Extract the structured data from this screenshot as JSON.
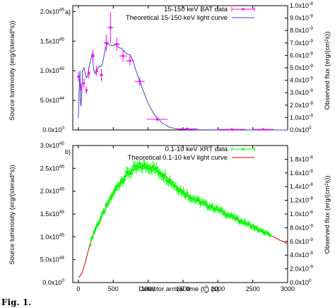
{
  "figure": {
    "x_axis_label": "Detector arrival time (t",
    "x_axis_label_sup": "d",
    "x_axis_label_sub": "a",
    "x_axis_label_end": ") (s)",
    "x_ticks": [
      "0",
      "500",
      "1000",
      "1500",
      "2000",
      "2500",
      "3000"
    ],
    "caption_fragment": "Fig. 1."
  },
  "chart_data": [
    {
      "type": "line",
      "panel_label": "a)",
      "ylabel_left": "Source luminosity (erg/(sterad*s))",
      "ylabel_right": "Observed flux (erg/(cm²s))",
      "xlim": [
        -80,
        3000
      ],
      "ylim": [
        0,
        2.1e+45
      ],
      "left_ticks": [
        {
          "v": 0,
          "m": "0.0x10",
          "e": "0"
        },
        {
          "v": 5e+44,
          "m": "5.0x10",
          "e": "44"
        },
        {
          "v": 1e+45,
          "m": "1.0x10",
          "e": "45"
        },
        {
          "v": 1.5e+45,
          "m": "1.5x10",
          "e": "45"
        },
        {
          "v": 2e+45,
          "m": "2.0x10",
          "e": "45"
        }
      ],
      "right_ticks": [
        {
          "f": 0,
          "m": "0.0x10",
          "e": "0"
        },
        {
          "f": 0.1,
          "m": "1.0x10",
          "e": "-9"
        },
        {
          "f": 0.2,
          "m": "2.0x10",
          "e": "-9"
        },
        {
          "f": 0.3,
          "m": "3.0x10",
          "e": "-9"
        },
        {
          "f": 0.4,
          "m": "4.0x10",
          "e": "-9"
        },
        {
          "f": 0.5,
          "m": "5.0x10",
          "e": "-9"
        },
        {
          "f": 0.6,
          "m": "6.0x10",
          "e": "-9"
        },
        {
          "f": 0.7,
          "m": "7.0x10",
          "e": "-9"
        },
        {
          "f": 0.8,
          "m": "8.0x10",
          "e": "-9"
        },
        {
          "f": 0.9,
          "m": "9.0x10",
          "e": "-9"
        },
        {
          "f": 1.0,
          "m": "1.0x10",
          "e": "-8"
        }
      ],
      "legend": [
        "15-150 keV BAT data",
        "Theoretical 15-150 keV light curve"
      ],
      "data_color": "#ff00ff",
      "curve_color": "#4040c0",
      "data": [
        {
          "x": 0,
          "y": 9e+44,
          "xe": 12,
          "ye": 8e+43
        },
        {
          "x": 40,
          "y": 7.3e+44,
          "xe": 12,
          "ye": 6e+43
        },
        {
          "x": 80,
          "y": 7.9e+44,
          "xe": 12,
          "ye": 8e+43
        },
        {
          "x": 115,
          "y": 6.7e+44,
          "xe": 12,
          "ye": 6e+43
        },
        {
          "x": 150,
          "y": 9.6e+44,
          "xe": 18,
          "ye": 9e+43
        },
        {
          "x": 210,
          "y": 1.25e+45,
          "xe": 25,
          "ye": 1.1e+44
        },
        {
          "x": 260,
          "y": 1e+45,
          "xe": 25,
          "ye": 8e+43
        },
        {
          "x": 330,
          "y": 9.3e+44,
          "xe": 30,
          "ye": 1e+44
        },
        {
          "x": 400,
          "y": 1.47e+45,
          "xe": 40,
          "ye": 1.4e+44
        },
        {
          "x": 460,
          "y": 1.73e+45,
          "xe": 45,
          "ye": 2.6e+44
        },
        {
          "x": 550,
          "y": 1.45e+45,
          "xe": 50,
          "ye": 1.1e+44
        },
        {
          "x": 640,
          "y": 1.25e+45,
          "xe": 55,
          "ye": 1e+44
        },
        {
          "x": 740,
          "y": 1.17e+45,
          "xe": 60,
          "ye": 8e+43
        },
        {
          "x": 880,
          "y": 8.2e+44,
          "xe": 70,
          "ye": 7e+43
        },
        {
          "x": 1130,
          "y": 1.8e+44,
          "xe": 150,
          "ye": 3e+43
        },
        {
          "x": 1560,
          "y": 2e+43,
          "xe": 150,
          "ye": 2e+43
        },
        {
          "x": 2200,
          "y": 1e+43,
          "xe": 200,
          "ye": 1e+43
        },
        {
          "x": 2650,
          "y": 1e+43,
          "xe": 150,
          "ye": 1e+43
        }
      ],
      "curve": [
        [
          0,
          2e+44
        ],
        [
          10,
          6.5e+44
        ],
        [
          22,
          1e+45
        ],
        [
          30,
          5e+44
        ],
        [
          38,
          4e+44
        ],
        [
          48,
          6e+44
        ],
        [
          60,
          1e+45
        ],
        [
          80,
          1.05e+45
        ],
        [
          100,
          9.5e+44
        ],
        [
          115,
          8.8e+44
        ],
        [
          130,
          9e+44
        ],
        [
          150,
          1.05e+45
        ],
        [
          170,
          1.15e+45
        ],
        [
          190,
          1.25e+45
        ],
        [
          200,
          1.3e+45
        ],
        [
          210,
          1.15e+45
        ],
        [
          222,
          1e+45
        ],
        [
          240,
          9.5e+44
        ],
        [
          260,
          1e+45
        ],
        [
          280,
          1.05e+45
        ],
        [
          300,
          1.08e+45
        ],
        [
          320,
          1.07e+45
        ],
        [
          340,
          1.1e+45
        ],
        [
          360,
          1.2e+45
        ],
        [
          390,
          1.4e+45
        ],
        [
          420,
          1.46e+45
        ],
        [
          460,
          1.43e+45
        ],
        [
          500,
          1.42e+45
        ],
        [
          540,
          1.45e+45
        ],
        [
          580,
          1.39e+45
        ],
        [
          620,
          1.38e+45
        ],
        [
          660,
          1.33e+45
        ],
        [
          700,
          1.28e+45
        ],
        [
          740,
          1.27e+45
        ],
        [
          780,
          1.18e+45
        ],
        [
          820,
          1.02e+45
        ],
        [
          880,
          8.2e+44
        ],
        [
          950,
          6e+44
        ],
        [
          1000,
          4.5e+44
        ],
        [
          1050,
          3.4e+44
        ],
        [
          1100,
          2.4e+44
        ],
        [
          1200,
          1.2e+44
        ],
        [
          1300,
          5e+43
        ],
        [
          1400,
          2e+43
        ],
        [
          1500,
          8e+42
        ],
        [
          1700,
          3e+42
        ],
        [
          2000,
          1e+42
        ],
        [
          3000,
          0
        ]
      ]
    },
    {
      "type": "line",
      "panel_label": "b)",
      "ylabel_left": "Source luminosity (erg/(sterad*s))",
      "ylabel_right": "Observed flux (erg/(cm²s))",
      "xlim": [
        -80,
        3000
      ],
      "ylim": [
        0,
        3e+45
      ],
      "left_ticks": [
        {
          "v": 0,
          "m": "0.0x10",
          "e": "0"
        },
        {
          "v": 5e+44,
          "m": "5.0x10",
          "e": "44"
        },
        {
          "v": 1e+45,
          "m": "1.0x10",
          "e": "45"
        },
        {
          "v": 1.5e+45,
          "m": "1.5x10",
          "e": "45"
        },
        {
          "v": 2e+45,
          "m": "2.0x10",
          "e": "45"
        },
        {
          "v": 2.5e+45,
          "m": "2.5x10",
          "e": "45"
        },
        {
          "v": 3e+45,
          "m": "3.0x10",
          "e": "45"
        }
      ],
      "right_ticks": [
        {
          "f": 0,
          "m": "0.0x10",
          "e": "0"
        },
        {
          "f": 0.1,
          "m": "2.0x10",
          "e": "-9"
        },
        {
          "f": 0.2,
          "m": "4.0x10",
          "e": "-9"
        },
        {
          "f": 0.3,
          "m": "6.0x10",
          "e": "-9"
        },
        {
          "f": 0.4,
          "m": "8.0x10",
          "e": "-9"
        },
        {
          "f": 0.5,
          "m": "1.0x10",
          "e": "-8"
        },
        {
          "f": 0.6,
          "m": "1.2x10",
          "e": "-8"
        },
        {
          "f": 0.7,
          "m": "1.4x10",
          "e": "-8"
        },
        {
          "f": 0.8,
          "m": "1.6x10",
          "e": "-8"
        },
        {
          "f": 0.9,
          "m": "1.8x10",
          "e": "-8"
        }
      ],
      "legend": [
        "0.1-10 keV XRT data",
        "Theoretical 0.1-10 keV light curve"
      ],
      "data_color": "#00ff00",
      "curve_color": "#d00000",
      "data_range": [
        170,
        2750
      ],
      "data_count": 150,
      "curve": [
        [
          0,
          1e+44
        ],
        [
          50,
          2e+44
        ],
        [
          100,
          4.5e+44
        ],
        [
          150,
          7.5e+44
        ],
        [
          200,
          1e+45
        ],
        [
          250,
          1.2e+45
        ],
        [
          300,
          1.35e+45
        ],
        [
          400,
          1.65e+45
        ],
        [
          500,
          1.95e+45
        ],
        [
          600,
          2.2e+45
        ],
        [
          700,
          2.38e+45
        ],
        [
          800,
          2.48e+45
        ],
        [
          900,
          2.54e+45
        ],
        [
          1000,
          2.55e+45
        ],
        [
          1100,
          2.48e+45
        ],
        [
          1200,
          2.38e+45
        ],
        [
          1300,
          2.25e+45
        ],
        [
          1400,
          2.1e+45
        ],
        [
          1500,
          1.98e+45
        ],
        [
          1600,
          1.88e+45
        ],
        [
          1700,
          1.8e+45
        ],
        [
          1800,
          1.72e+45
        ],
        [
          1900,
          1.66e+45
        ],
        [
          2000,
          1.6e+45
        ],
        [
          2100,
          1.52e+45
        ],
        [
          2200,
          1.44e+45
        ],
        [
          2300,
          1.37e+45
        ],
        [
          2400,
          1.3e+45
        ],
        [
          2500,
          1.22e+45
        ],
        [
          2600,
          1.14e+45
        ],
        [
          2700,
          1.07e+45
        ],
        [
          2800,
          1e+45
        ],
        [
          2900,
          9.2e+44
        ],
        [
          3000,
          8.5e+44
        ]
      ]
    }
  ]
}
